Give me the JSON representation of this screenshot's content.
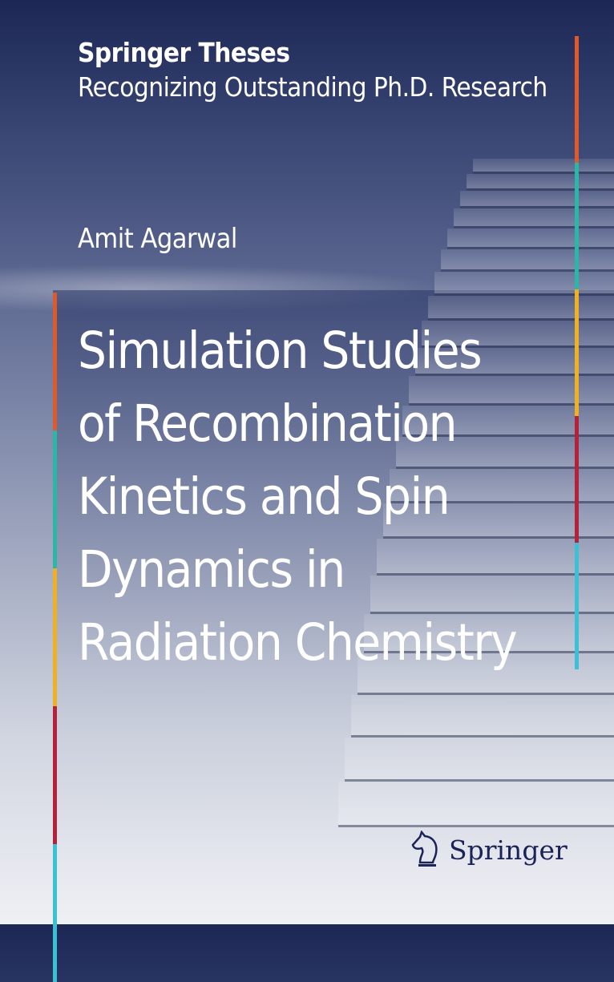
{
  "series": {
    "name": "Springer Theses",
    "tagline": "Recognizing Outstanding Ph.D. Research"
  },
  "author": "Amit Agarwal",
  "title_lines": [
    "Simulation Studies",
    "of Recombination",
    "Kinetics and Spin",
    "Dynamics in",
    "Radiation Chemistry"
  ],
  "publisher": {
    "name": "Springer",
    "logo_icon": "knight-horse-icon",
    "color": "#1b2358"
  },
  "stripe_colors": [
    "#e0592a",
    "#2bb6a8",
    "#f0b023",
    "#b5213a",
    "#3cc0d6"
  ]
}
